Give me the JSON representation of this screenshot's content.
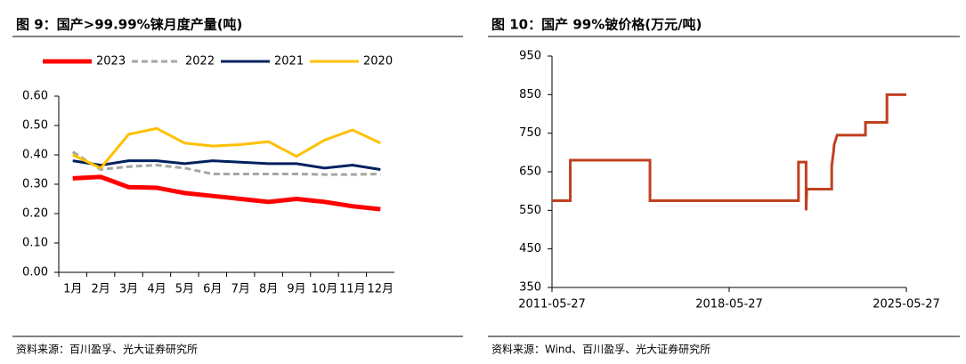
{
  "chart_data": [
    {
      "type": "line",
      "title": "图 9：国产>99.99%铼月度产量(吨)",
      "source": "资料来源：百川盈孚、光大证券研究所",
      "categories": [
        "1月",
        "2月",
        "3月",
        "4月",
        "5月",
        "6月",
        "7月",
        "8月",
        "9月",
        "10月",
        "11月",
        "12月"
      ],
      "series": [
        {
          "name": "2023",
          "color": "#ff0000",
          "values": [
            0.32,
            0.325,
            0.29,
            0.288,
            0.27,
            0.26,
            0.25,
            0.24,
            0.25,
            0.24,
            0.225,
            0.215
          ]
        },
        {
          "name": "2022",
          "color": "#a6a6a6",
          "dashed": true,
          "values": [
            0.41,
            0.35,
            0.36,
            0.365,
            0.355,
            0.335,
            0.335,
            0.335,
            0.335,
            0.333,
            0.333,
            0.335
          ]
        },
        {
          "name": "2021",
          "color": "#002060",
          "values": [
            0.38,
            0.365,
            0.38,
            0.38,
            0.37,
            0.38,
            0.375,
            0.37,
            0.37,
            0.355,
            0.365,
            0.35
          ]
        },
        {
          "name": "2020",
          "color": "#ffc000",
          "values": [
            0.4,
            0.355,
            0.47,
            0.49,
            0.44,
            0.43,
            0.435,
            0.445,
            0.395,
            0.45,
            0.485,
            0.44
          ]
        }
      ],
      "ylim": [
        0,
        0.6
      ],
      "yticks": [
        {
          "value": 0,
          "label": "0.00"
        },
        {
          "value": 0.1,
          "label": "0.10"
        },
        {
          "value": 0.2,
          "label": "0.20"
        },
        {
          "value": 0.3,
          "label": "0.30"
        },
        {
          "value": 0.4,
          "label": "0.40"
        },
        {
          "value": 0.5,
          "label": "0.50"
        },
        {
          "value": 0.6,
          "label": "0.60"
        }
      ],
      "legend": "top"
    },
    {
      "type": "step",
      "title": "图 10：国产 99%铍价格(万元/吨)",
      "source": "资料来源：Wind、百川盈孚、光大证券研究所",
      "x": [
        "2011-05-27",
        "2012-02-15",
        "2012-02-15",
        "2015-04-10",
        "2015-04-10",
        "2021-02-20",
        "2021-02-20",
        "2021-06-10",
        "2021-06-10",
        "2021-06-20",
        "2022-06-15",
        "2022-06-15",
        "2022-07-10",
        "2022-07-20",
        "2022-09-01",
        "2023-10-15",
        "2023-10-15",
        "2024-08-20",
        "2024-08-20",
        "2025-05-27"
      ],
      "series": [
        {
          "name": "价格",
          "color": "#c0401f",
          "values": [
            575,
            575,
            680,
            680,
            575,
            575,
            675,
            675,
            550,
            605,
            605,
            665,
            700,
            720,
            745,
            745,
            778,
            778,
            850,
            850
          ]
        }
      ],
      "xlim": [
        "2011-05-27",
        "2025-05-27"
      ],
      "xticks": [
        "2011-05-27",
        "2018-05-27",
        "2025-05-27"
      ],
      "ylim": [
        350,
        950
      ],
      "yticks": [
        350,
        450,
        550,
        650,
        750,
        850,
        950
      ]
    }
  ]
}
